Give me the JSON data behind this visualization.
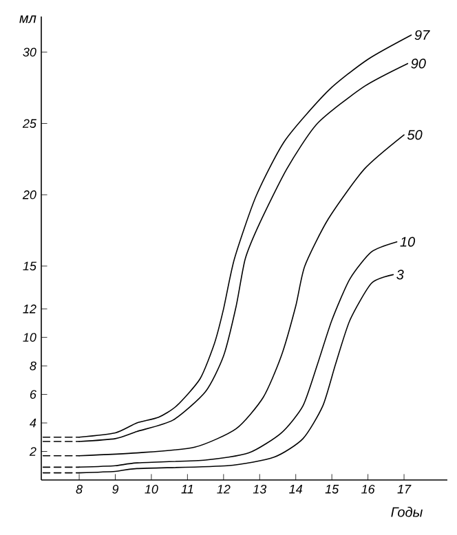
{
  "chart_data": {
    "type": "line",
    "xlabel": "Годы",
    "ylabel": "мл",
    "xlim": [
      6.95,
      18.2
    ],
    "ylim": [
      0,
      32.5
    ],
    "xticks": [
      8,
      9,
      10,
      11,
      12,
      13,
      14,
      15,
      16,
      17
    ],
    "yticks": [
      2,
      4,
      6,
      8,
      10,
      12,
      15,
      20,
      25,
      30
    ],
    "grid": false,
    "legend": false,
    "marker": "none",
    "line_style": "solid",
    "series": [
      {
        "name": "97",
        "color": "#000000",
        "x": [
          8,
          9,
          9.6,
          10.2,
          10.7,
          11.35,
          11.75,
          12.0,
          12.3,
          12.9,
          13.7,
          14.9,
          16.0,
          17.2
        ],
        "values": [
          3.0,
          3.3,
          4.0,
          4.4,
          5.2,
          7.1,
          9.6,
          12.0,
          15.5,
          19.9,
          23.8,
          27.3,
          29.5,
          31.2
        ]
      },
      {
        "name": "90",
        "color": "#000000",
        "x": [
          8,
          9,
          9.6,
          10.6,
          11.5,
          12.0,
          12.35,
          12.6,
          13.0,
          13.75,
          14.6,
          15.9,
          17.1
        ],
        "values": [
          2.7,
          2.9,
          3.4,
          4.2,
          6.2,
          8.7,
          12.2,
          15.5,
          18.0,
          21.8,
          25.0,
          27.6,
          29.2
        ]
      },
      {
        "name": "50",
        "color": "#000000",
        "x": [
          8,
          9.6,
          11.2,
          12.35,
          13.1,
          13.6,
          14.0,
          14.25,
          14.9,
          15.9,
          17.0
        ],
        "values": [
          1.7,
          1.9,
          2.3,
          3.6,
          5.8,
          8.7,
          12.2,
          15.0,
          18.3,
          21.8,
          24.2
        ]
      },
      {
        "name": "10",
        "color": "#000000",
        "x": [
          8,
          9,
          9.6,
          11.5,
          12.7,
          13.6,
          14.2,
          14.6,
          15.0,
          15.5,
          16.1,
          16.8
        ],
        "values": [
          0.9,
          1.0,
          1.2,
          1.4,
          1.9,
          3.3,
          5.2,
          8.1,
          11.2,
          14.1,
          16.0,
          16.7
        ]
      },
      {
        "name": "3",
        "color": "#000000",
        "x": [
          8,
          9,
          9.6,
          12.1,
          13.4,
          14.2,
          14.75,
          15.1,
          15.5,
          16.1,
          16.7
        ],
        "values": [
          0.5,
          0.6,
          0.8,
          1.0,
          1.6,
          2.9,
          5.2,
          8.1,
          11.2,
          13.8,
          14.4
        ]
      },
      {
        "color": "#000000",
        "line_style": "dashed",
        "x": [
          7.0,
          8
        ],
        "values": [
          3.0,
          3.0
        ]
      },
      {
        "color": "#000000",
        "line_style": "dashed",
        "x": [
          7.0,
          8
        ],
        "values": [
          2.7,
          2.7
        ]
      },
      {
        "color": "#000000",
        "line_style": "dashed",
        "x": [
          7.0,
          8
        ],
        "values": [
          1.7,
          1.7
        ]
      },
      {
        "color": "#000000",
        "line_style": "dashed",
        "x": [
          7.0,
          8
        ],
        "values": [
          0.9,
          0.9
        ]
      },
      {
        "color": "#000000",
        "line_style": "dashed",
        "x": [
          7.0,
          8
        ],
        "values": [
          0.5,
          0.5
        ]
      }
    ]
  }
}
